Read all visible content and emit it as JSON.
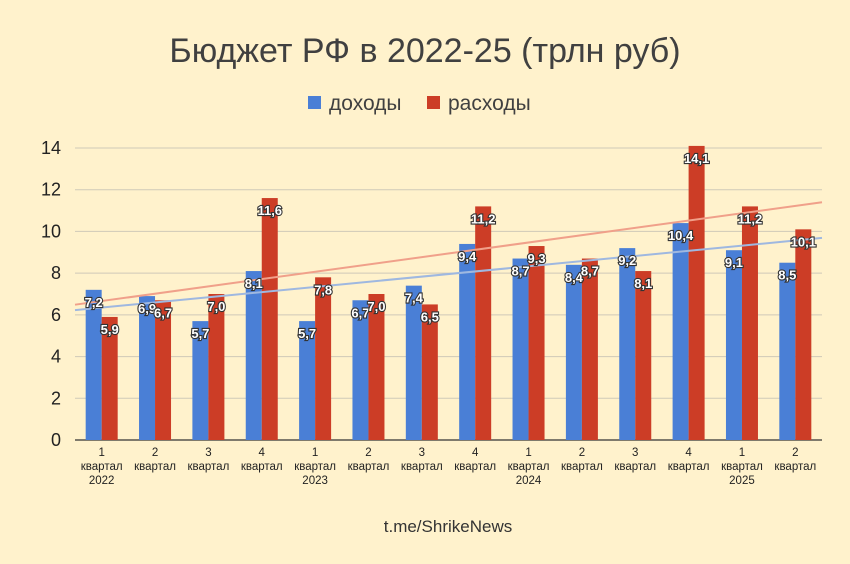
{
  "chart_data": {
    "type": "bar",
    "title": "Бюджет РФ в 2022-25 (трлн руб)",
    "categories": [
      [
        "1",
        "квартал",
        "2022"
      ],
      [
        "2",
        "квартал",
        ""
      ],
      [
        "3",
        "квартал",
        ""
      ],
      [
        "4",
        "квартал",
        ""
      ],
      [
        "1",
        "квартал",
        "2023"
      ],
      [
        "2",
        "квартал",
        ""
      ],
      [
        "3",
        "квартал",
        ""
      ],
      [
        "4",
        "квартал",
        ""
      ],
      [
        "1",
        "квартал",
        "2024"
      ],
      [
        "2",
        "квартал",
        ""
      ],
      [
        "3",
        "квартал",
        ""
      ],
      [
        "4",
        "квартал",
        ""
      ],
      [
        "1",
        "квартал",
        "2025"
      ],
      [
        "2",
        "квартал",
        ""
      ]
    ],
    "series": [
      {
        "name": "доходы",
        "color": "#4a7fd6",
        "values": [
          7.2,
          6.9,
          5.7,
          8.1,
          5.7,
          6.7,
          7.4,
          9.4,
          8.7,
          8.4,
          9.2,
          10.4,
          9.1,
          8.5
        ],
        "labels": [
          "7,2",
          "6,9",
          "5,7",
          "8,1",
          "5,7",
          "6,7",
          "7,4",
          "9,4",
          "8,7",
          "8,4",
          "9,2",
          "10,4",
          "9,1",
          "8,5"
        ]
      },
      {
        "name": "расходы",
        "color": "#cc3d26",
        "values": [
          5.9,
          6.7,
          7.0,
          11.6,
          7.8,
          7.0,
          6.5,
          11.2,
          9.3,
          8.7,
          8.1,
          14.1,
          11.2,
          10.1
        ],
        "labels": [
          "5,9",
          "6,7",
          "7,0",
          "11,6",
          "7,8",
          "7,0",
          "6,5",
          "11,2",
          "9,3",
          "8,7",
          "8,1",
          "14,1",
          "11,2",
          "10,1"
        ]
      }
    ],
    "trendlines": [
      {
        "series": "доходы",
        "color": "#9fb8e0"
      },
      {
        "series": "расходы",
        "color": "#f0a08a"
      }
    ],
    "ylim": [
      0,
      14
    ],
    "yticks": [
      0,
      2,
      4,
      6,
      8,
      10,
      12,
      14
    ],
    "grid": true,
    "legend_position": "top",
    "xlabel": "",
    "ylabel": "",
    "source": "t.me/ShrikeNews"
  }
}
